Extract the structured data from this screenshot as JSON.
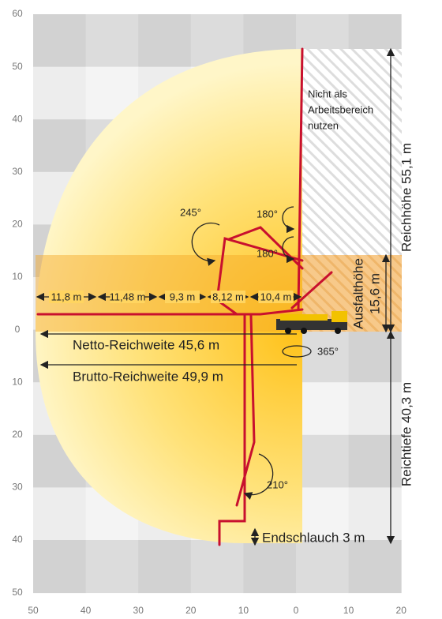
{
  "y_axis_labels": [
    60,
    50,
    40,
    30,
    20,
    10,
    0,
    10,
    20,
    30,
    40,
    50
  ],
  "x_axis_labels": [
    50,
    40,
    30,
    20,
    10,
    0,
    10,
    20
  ],
  "no_work_zone": [
    "Nicht als",
    "Arbeitsbereich",
    "nutzen"
  ],
  "angles": {
    "rotation_245": "245°",
    "rotation_180_upper": "180°",
    "rotation_180_lower": "180°",
    "slew": "365°",
    "rotation_210": "210°"
  },
  "segments": [
    "11,8 m",
    "11,48 m",
    "9,3 m",
    "8,12 m",
    "10,4 m"
  ],
  "unfold_height": [
    "Ausfalthöhe",
    "15,6 m"
  ],
  "reach_height": "Reichhöhe 55,1 m",
  "reach_depth": "Reichtiefe 40,3 m",
  "net_reach": "Netto-Reichweite 45,6 m",
  "gross_reach": "Brutto-Reichweite 49,9 m",
  "end_hose": "Endschlauch 3 m"
}
